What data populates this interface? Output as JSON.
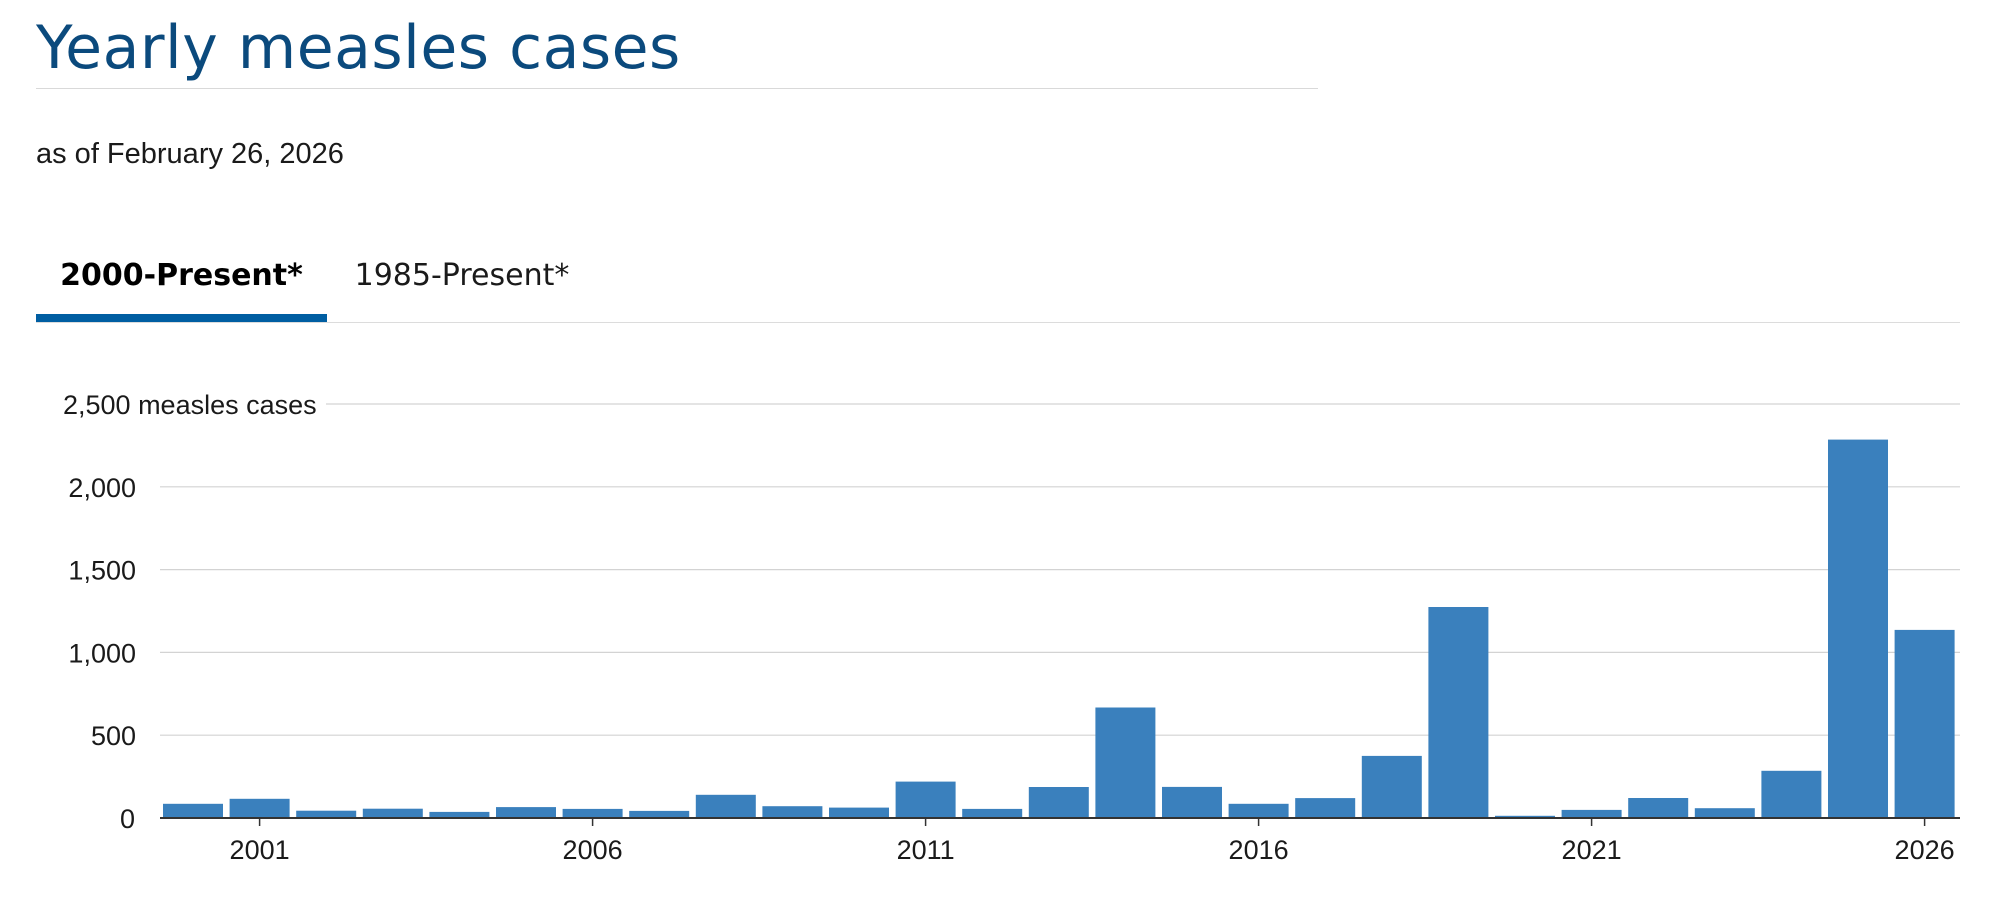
{
  "header": {
    "title": "Yearly measles cases",
    "subtitle": "as of February 26, 2026"
  },
  "tabs": [
    {
      "label": "2000-Present*",
      "active": true
    },
    {
      "label": "1985-Present*",
      "active": false
    }
  ],
  "colors": {
    "bar": "#3a80bd",
    "accent": "#005ea2",
    "title": "#0b4a7d",
    "grid": "#d3d3d3"
  },
  "chart_data": {
    "type": "bar",
    "title": "",
    "xlabel": "",
    "ylabel": "",
    "y_unit_label": "measles cases",
    "categories": [
      "2000",
      "2001",
      "2002",
      "2003",
      "2004",
      "2005",
      "2006",
      "2007",
      "2008",
      "2009",
      "2010",
      "2011",
      "2012",
      "2013",
      "2014",
      "2015",
      "2016",
      "2017",
      "2018",
      "2019",
      "2020",
      "2021",
      "2022",
      "2023",
      "2024",
      "2025",
      "2026"
    ],
    "values": [
      86,
      116,
      44,
      56,
      37,
      66,
      55,
      43,
      140,
      71,
      63,
      220,
      55,
      187,
      667,
      188,
      86,
      120,
      375,
      1274,
      13,
      49,
      121,
      59,
      285,
      2285,
      1136
    ],
    "ylim": [
      0,
      2500
    ],
    "yticks": [
      0,
      500,
      1000,
      1500,
      2000,
      2500
    ],
    "ytick_labels": [
      "0",
      "500",
      "1,000",
      "1,500",
      "2,000",
      "2,500"
    ],
    "xtick_labels": [
      "2001",
      "2006",
      "2011",
      "2016",
      "2021",
      "2026"
    ],
    "grid": true,
    "legend": "none"
  }
}
